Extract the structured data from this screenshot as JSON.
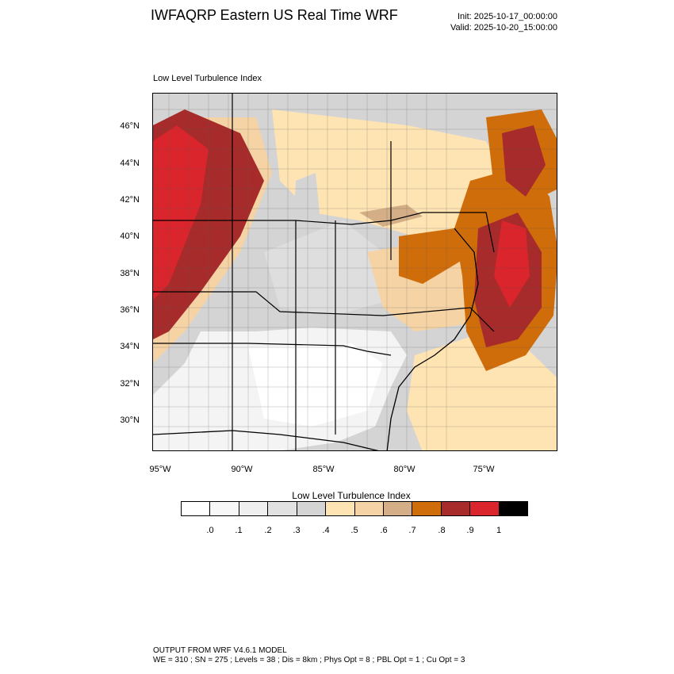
{
  "header": {
    "title": "IWFAQRP Eastern US Real Time WRF",
    "init": "Init: 2025-10-17_00:00:00",
    "valid": "Valid: 2025-10-20_15:00:00"
  },
  "map": {
    "subtitle": "Low Level Turbulence Index",
    "lat_labels": [
      "46°N",
      "44°N",
      "42°N",
      "40°N",
      "38°N",
      "36°N",
      "34°N",
      "32°N",
      "30°N"
    ],
    "lon_labels": [
      "95°W",
      "90°W",
      "85°W",
      "80°W",
      "75°W"
    ]
  },
  "colorbar": {
    "title": "Low Level Turbulence Index",
    "colors": [
      "#ffffff",
      "#f7f7f7",
      "#efefef",
      "#e1e1e1",
      "#d4d4d4",
      "#ffe4b3",
      "#f5d3a5",
      "#d3ae86",
      "#d06d0b",
      "#a72b2b",
      "#d9252b",
      "#000000"
    ],
    "labels": [
      ".0",
      ".1",
      ".2",
      ".3",
      ".4",
      ".5",
      ".6",
      ".7",
      ".8",
      ".9",
      "1"
    ]
  },
  "footer": {
    "line1": "OUTPUT FROM WRF V4.6.1 MODEL",
    "line2": "WE = 310 ; SN = 275 ; Levels = 38 ; Dis = 8km ; Phys Opt = 8 ; PBL Opt = 1 ; Cu Opt = 3"
  }
}
